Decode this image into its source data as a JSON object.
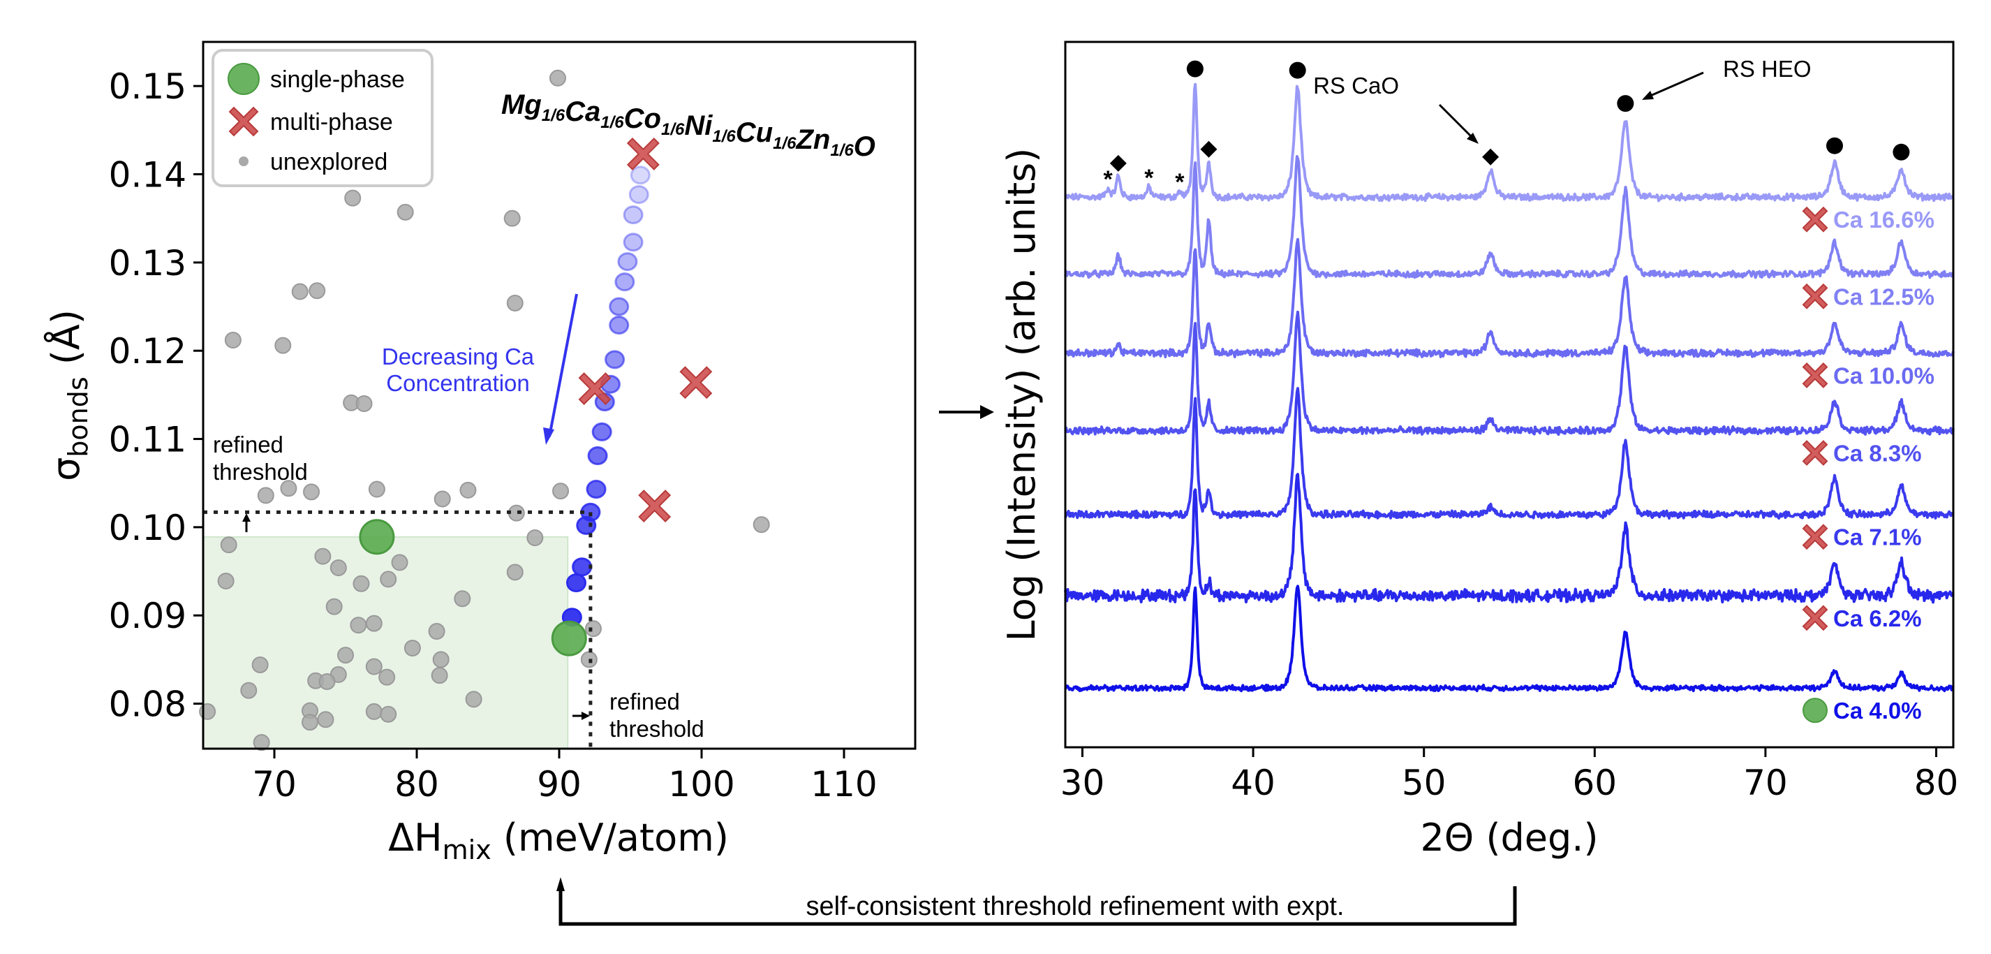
{
  "chart_data": [
    {
      "type": "scatter",
      "panel": "left",
      "xlabel_main": "ΔH",
      "xlabel_sub": "mix",
      "xlabel_rest": " (meV/atom)",
      "ylabel_main": "σ",
      "ylabel_sub": "bonds",
      "ylabel_rest": " (Å)",
      "xlim": [
        65,
        115
      ],
      "ylim": [
        0.0749,
        0.155
      ],
      "xticks": [
        70,
        80,
        90,
        100,
        110
      ],
      "xtick_labels": [
        "70",
        "80",
        "90",
        "100",
        "110"
      ],
      "yticks": [
        0.08,
        0.09,
        0.1,
        0.11,
        0.12,
        0.13,
        0.14,
        0.15
      ],
      "ytick_labels": [
        "0.08",
        "0.09",
        "0.10",
        "0.11",
        "0.12",
        "0.13",
        "0.14",
        "0.15"
      ],
      "grid": false,
      "legend": {
        "placement": "top-left",
        "entries": [
          {
            "label": "single-phase",
            "marker": "circle",
            "color": "#5aab4f"
          },
          {
            "label": "multi-phase",
            "marker": "x",
            "color": "#cd4b4b"
          },
          {
            "label": "unexplored",
            "marker": "small-circle",
            "color": "#a9a9a9"
          }
        ]
      },
      "formula": {
        "parts": [
          {
            "el": "Mg",
            "sub": "1/6"
          },
          {
            "el": "Ca",
            "sub": "1/6"
          },
          {
            "el": "Co",
            "sub": "1/6"
          },
          {
            "el": "Ni",
            "sub": "1/6"
          },
          {
            "el": "Cu",
            "sub": "1/6"
          },
          {
            "el": "Zn",
            "sub": "1/6"
          },
          {
            "el": "O",
            "sub": ""
          }
        ]
      },
      "annotation_trend": {
        "line1": "Decreasing Ca",
        "line2": "Concentration",
        "color": "#3333ee"
      },
      "threshold_label_y": {
        "line1": "refined",
        "line2": "threshold"
      },
      "threshold_label_x": {
        "line1": "refined",
        "line2": "threshold"
      },
      "refined_threshold": {
        "x": 92.2,
        "y": 0.1017
      },
      "initial_region": {
        "x": [
          65,
          90.6
        ],
        "y": [
          0.0749,
          0.0989
        ],
        "color": "#e8f3e6"
      },
      "series": [
        {
          "name": "unexplored",
          "color": "#a9a9a9",
          "points": [
            [
              89.9,
              0.1509
            ],
            [
              75.5,
              0.1373
            ],
            [
              79.2,
              0.1357
            ],
            [
              86.7,
              0.135
            ],
            [
              71.8,
              0.1267
            ],
            [
              73.0,
              0.1268
            ],
            [
              86.9,
              0.1254
            ],
            [
              67.1,
              0.1212
            ],
            [
              70.6,
              0.1206
            ],
            [
              75.4,
              0.1141
            ],
            [
              76.3,
              0.114
            ],
            [
              69.4,
              0.1036
            ],
            [
              71.0,
              0.1044
            ],
            [
              72.6,
              0.104
            ],
            [
              77.2,
              0.1043
            ],
            [
              81.8,
              0.1032
            ],
            [
              83.6,
              0.1042
            ],
            [
              90.1,
              0.1041
            ],
            [
              87.0,
              0.1016
            ],
            [
              104.2,
              0.1003
            ],
            [
              66.8,
              0.098
            ],
            [
              66.6,
              0.0939
            ],
            [
              73.4,
              0.0967
            ],
            [
              74.5,
              0.0954
            ],
            [
              76.1,
              0.0936
            ],
            [
              78.0,
              0.0941
            ],
            [
              78.8,
              0.096
            ],
            [
              74.2,
              0.091
            ],
            [
              75.9,
              0.0889
            ],
            [
              77.0,
              0.0891
            ],
            [
              81.4,
              0.0882
            ],
            [
              79.7,
              0.0863
            ],
            [
              83.2,
              0.0919
            ],
            [
              86.9,
              0.0949
            ],
            [
              88.3,
              0.0988
            ],
            [
              75.0,
              0.0855
            ],
            [
              77.0,
              0.0842
            ],
            [
              81.7,
              0.085
            ],
            [
              81.6,
              0.0832
            ],
            [
              69.0,
              0.0844
            ],
            [
              74.5,
              0.0833
            ],
            [
              72.9,
              0.0826
            ],
            [
              73.7,
              0.0825
            ],
            [
              77.9,
              0.083
            ],
            [
              68.2,
              0.0815
            ],
            [
              84.0,
              0.0805
            ],
            [
              72.5,
              0.0792
            ],
            [
              72.5,
              0.0779
            ],
            [
              73.6,
              0.0782
            ],
            [
              77.0,
              0.0791
            ],
            [
              78.0,
              0.0788
            ],
            [
              65.3,
              0.0791
            ],
            [
              69.1,
              0.0756
            ],
            [
              92.1,
              0.085
            ],
            [
              92.4,
              0.0885
            ]
          ]
        },
        {
          "name": "Ca-substitution path (decreasing Ca)",
          "color": "#2a2aee",
          "points": [
            [
              95.7,
              0.1399
            ],
            [
              95.6,
              0.1377
            ],
            [
              95.2,
              0.1354
            ],
            [
              95.2,
              0.1323
            ],
            [
              94.8,
              0.1301
            ],
            [
              94.6,
              0.1278
            ],
            [
              94.2,
              0.125
            ],
            [
              94.2,
              0.1229
            ],
            [
              93.9,
              0.119
            ],
            [
              93.6,
              0.1162
            ],
            [
              93.2,
              0.1142
            ],
            [
              93.0,
              0.1108
            ],
            [
              92.7,
              0.1081
            ],
            [
              92.6,
              0.1043
            ],
            [
              92.2,
              0.1017
            ],
            [
              91.9,
              0.1002
            ],
            [
              91.6,
              0.0955
            ],
            [
              91.2,
              0.0937
            ],
            [
              90.9,
              0.0898
            ]
          ]
        },
        {
          "name": "multi-phase",
          "color": "#cd4b4b",
          "points": [
            [
              95.9,
              0.1423
            ],
            [
              92.5,
              0.1157
            ],
            [
              99.6,
              0.1164
            ],
            [
              96.7,
              0.1024
            ]
          ]
        },
        {
          "name": "single-phase",
          "color": "#5aab4f",
          "points": [
            [
              77.2,
              0.0989
            ],
            [
              90.7,
              0.0874
            ]
          ]
        }
      ]
    },
    {
      "type": "line",
      "panel": "right",
      "xlabel": "2Θ (deg.)",
      "ylabel": "Log (Intensity) (arb. units)",
      "xlim": [
        29,
        81
      ],
      "ylim": [
        0,
        100
      ],
      "xticks": [
        30,
        40,
        50,
        60,
        70,
        80
      ],
      "xtick_labels": [
        "30",
        "40",
        "50",
        "60",
        "70",
        "80"
      ],
      "grid": false,
      "peak_markers": {
        "rs_heo": [
          36.6,
          42.6,
          61.8,
          74.05,
          77.95
        ],
        "rs_cao": [
          32.1,
          37.4,
          53.9
        ],
        "unknown": [
          31.5,
          33.9,
          35.7
        ]
      },
      "annotations": {
        "rs_cao": "RS CaO",
        "rs_heo": "RS HEO",
        "star": "*"
      },
      "series": [
        {
          "name": "Ca 16.6%",
          "phase": "multi-phase",
          "color": "#9999f7",
          "offset": 78.0,
          "noise": 0.55,
          "peaks": [
            [
              31.5,
              1.2
            ],
            [
              32.1,
              3.0
            ],
            [
              33.9,
              1.4
            ],
            [
              35.7,
              0.8
            ],
            [
              36.6,
              15.8
            ],
            [
              37.4,
              5.0
            ],
            [
              42.6,
              15.6
            ],
            [
              53.9,
              3.9
            ],
            [
              61.8,
              10.9
            ],
            [
              74.05,
              4.9
            ],
            [
              77.95,
              4.0
            ]
          ]
        },
        {
          "name": "Ca 12.5%",
          "phase": "multi-phase",
          "color": "#8080f4",
          "offset": 67.1,
          "noise": 0.55,
          "peaks": [
            [
              32.1,
              2.8
            ],
            [
              36.6,
              15.9
            ],
            [
              37.4,
              7.7
            ],
            [
              42.6,
              16.6
            ],
            [
              53.9,
              3.0
            ],
            [
              61.8,
              11.9
            ],
            [
              74.05,
              4.5
            ],
            [
              77.95,
              4.7
            ]
          ]
        },
        {
          "name": "Ca 10.0%",
          "phase": "multi-phase",
          "color": "#6a6af2",
          "offset": 55.9,
          "noise": 0.6,
          "peaks": [
            [
              32.1,
              1.2
            ],
            [
              36.6,
              15.0
            ],
            [
              37.4,
              4.5
            ],
            [
              42.6,
              16.0
            ],
            [
              53.9,
              3.0
            ],
            [
              61.8,
              10.9
            ],
            [
              74.05,
              4.2
            ],
            [
              77.95,
              4.0
            ]
          ]
        },
        {
          "name": "Ca 8.3%",
          "phase": "multi-phase",
          "color": "#5252f0",
          "offset": 44.9,
          "noise": 0.6,
          "peaks": [
            [
              36.6,
              15.0
            ],
            [
              37.4,
              4.0
            ],
            [
              42.6,
              16.5
            ],
            [
              53.9,
              1.5
            ],
            [
              61.8,
              11.9
            ],
            [
              74.05,
              4.2
            ],
            [
              77.95,
              4.0
            ]
          ]
        },
        {
          "name": "Ca 7.1%",
          "phase": "multi-phase",
          "color": "#3a3aee",
          "offset": 33.0,
          "noise": 0.6,
          "peaks": [
            [
              36.6,
              16.3
            ],
            [
              37.4,
              3.5
            ],
            [
              42.6,
              17.6
            ],
            [
              53.9,
              1.0
            ],
            [
              61.8,
              10.4
            ],
            [
              74.05,
              5.1
            ],
            [
              77.95,
              4.0
            ]
          ]
        },
        {
          "name": "Ca 6.2%",
          "phase": "multi-phase",
          "color": "#2828ec",
          "offset": 21.5,
          "noise": 1.0,
          "peaks": [
            [
              36.6,
              15.6
            ],
            [
              37.4,
              2.0
            ],
            [
              42.6,
              16.9
            ],
            [
              61.8,
              9.9
            ],
            [
              74.05,
              4.5
            ],
            [
              77.95,
              4.8
            ]
          ]
        },
        {
          "name": "Ca 4.0%",
          "phase": "single-phase",
          "color": "#1010e8",
          "offset": 8.4,
          "noise": 0.45,
          "peaks": [
            [
              36.6,
              14.4
            ],
            [
              42.6,
              14.8
            ],
            [
              61.8,
              7.9
            ],
            [
              74.05,
              2.5
            ],
            [
              77.95,
              2.0
            ]
          ]
        }
      ]
    }
  ],
  "bottom_note": "self-consistent threshold refinement with expt."
}
